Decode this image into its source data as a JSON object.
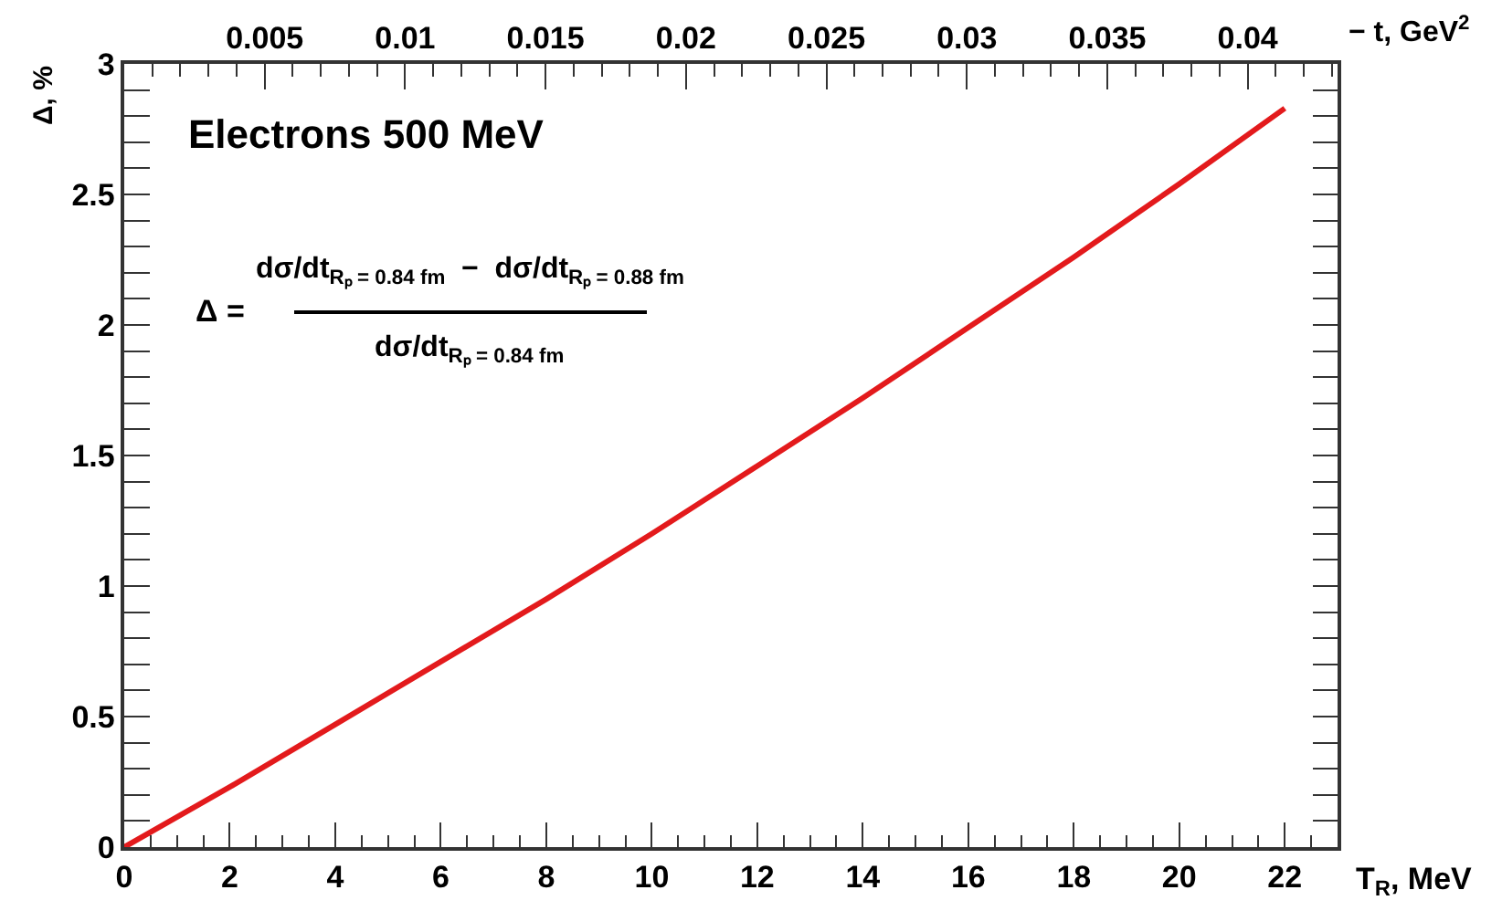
{
  "chart_data": {
    "type": "line",
    "xlabel": "T$_{R}$, MeV",
    "ylabel": "Δ, %",
    "x2label": "− t, GeV$^{2}$",
    "annotations": [
      "Electrons 500 MeV",
      "Δ =",
      "dσ/dt$_{Rₚ = 0.84 fm}$  −  dσ/dt$_{Rₚ = 0.88 fm}$",
      "dσ/dt$_{Rₚ = 0.84 fm}$"
    ],
    "x": [
      0,
      2,
      4,
      6,
      8,
      10,
      12,
      14,
      16,
      18,
      20,
      22
    ],
    "series": [
      {
        "color": "#e31a1c",
        "values": [
          0,
          0.23,
          0.47,
          0.71,
          0.95,
          1.2,
          1.46,
          1.72,
          1.99,
          2.26,
          2.54,
          2.83
        ]
      }
    ],
    "xlim": [
      0,
      23
    ],
    "xticks": [
      0,
      2,
      4,
      6,
      8,
      10,
      12,
      14,
      16,
      18,
      20,
      22
    ],
    "ylim": [
      0,
      3
    ],
    "yticks": [
      0,
      0.5,
      1,
      1.5,
      2,
      2.5,
      3
    ],
    "x2lim": [
      0,
      0.0432
    ],
    "x2ticks": [
      0.005,
      0.01,
      0.015,
      0.02,
      0.025,
      0.03,
      0.035,
      0.04
    ],
    "line_style": "solid"
  }
}
